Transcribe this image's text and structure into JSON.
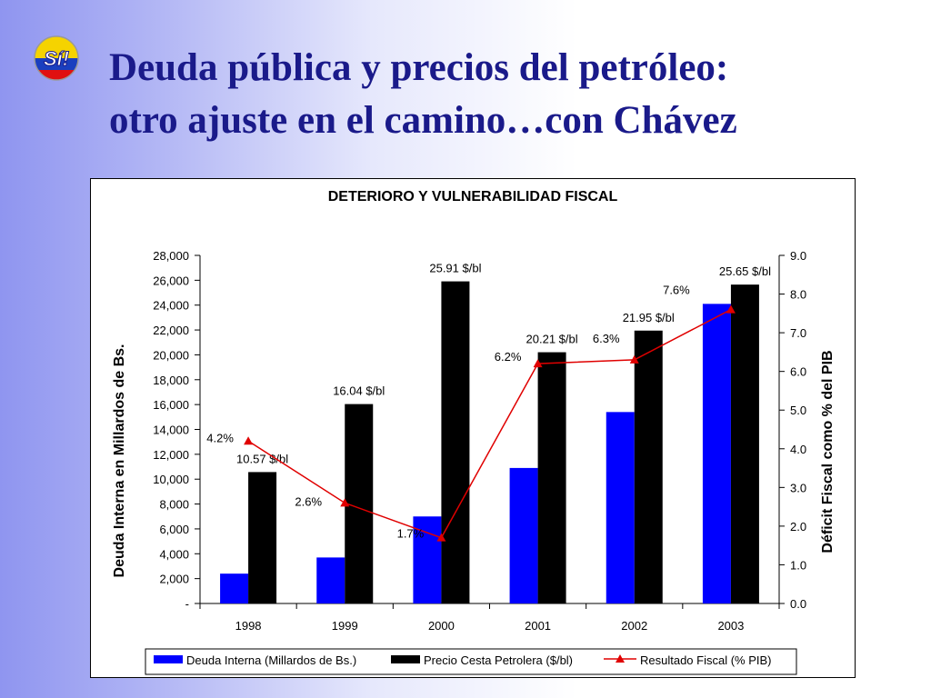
{
  "slide": {
    "title_line1": "Deuda pública y precios del petróleo:",
    "title_line2": "otro ajuste en el camino…con Chávez",
    "logo_text": "Sí!"
  },
  "colors": {
    "title": "#1a1a8a",
    "deuda": "#0000ff",
    "precio": "#000000",
    "resultado": "#e00000"
  },
  "chart_data": {
    "type": "bar",
    "title": "DETERIORO Y VULNERABILIDAD FISCAL",
    "categories": [
      "1998",
      "1999",
      "2000",
      "2001",
      "2002",
      "2003"
    ],
    "ylabel": "Deuda Interna en Millardos de Bs.",
    "y2label": "Déficit Fiscal como % del PIB",
    "ylim": [
      0,
      28000
    ],
    "y2lim": [
      0,
      9
    ],
    "yticks": [
      "-",
      "2,000",
      "4,000",
      "6,000",
      "8,000",
      "10,000",
      "12,000",
      "14,000",
      "16,000",
      "18,000",
      "20,000",
      "22,000",
      "24,000",
      "26,000",
      "28,000"
    ],
    "y2ticks": [
      "0.0",
      "1.0",
      "2.0",
      "3.0",
      "4.0",
      "5.0",
      "6.0",
      "7.0",
      "8.0",
      "9.0"
    ],
    "legend_position": "bottom",
    "series": [
      {
        "name": "Deuda Interna (Millardos de Bs.)",
        "type": "bar",
        "axis": "left",
        "values": [
          2400,
          3700,
          7000,
          10900,
          15400,
          24100
        ]
      },
      {
        "name": "Precio Cesta  Petrolera ($/bl)",
        "type": "bar",
        "axis": "left",
        "values": [
          10570,
          16040,
          25910,
          20210,
          21950,
          25650
        ],
        "labels": [
          "10.57 $/bl",
          "16.04 $/bl",
          "25.91 $/bl",
          "20.21 $/bl",
          "21.95 $/bl",
          "25.65 $/bl"
        ]
      },
      {
        "name": "Resultado Fiscal (% PIB)",
        "type": "line",
        "axis": "right",
        "values": [
          4.2,
          2.6,
          1.7,
          6.2,
          6.3,
          7.6
        ],
        "labels": [
          "4.2%",
          "2.6%",
          "1.7%",
          "6.2%",
          "6.3%",
          "7.6%"
        ]
      }
    ]
  }
}
